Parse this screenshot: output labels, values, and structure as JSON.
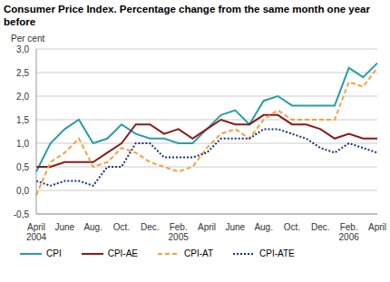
{
  "chart_data": {
    "type": "line",
    "title": "Consumer Price Index. Percentage change from the same month one year before",
    "y_label": "Per cent",
    "categories": [
      "April 2004",
      null,
      "June",
      null,
      "Aug.",
      null,
      "Oct.",
      null,
      "Dec.",
      null,
      "Feb. 2005",
      null,
      "April",
      null,
      "June",
      null,
      "Aug.",
      null,
      "Oct.",
      null,
      "Dec.",
      null,
      "Feb. 2006",
      null,
      "April"
    ],
    "series": [
      {
        "name": "CPI",
        "color": "#2a9ea3",
        "line_style": "solid",
        "values": [
          0.4,
          1.0,
          1.3,
          1.5,
          1.0,
          1.1,
          1.4,
          1.2,
          1.1,
          1.1,
          1.0,
          1.0,
          1.3,
          1.6,
          1.7,
          1.4,
          1.9,
          2.0,
          1.8,
          1.8,
          1.8,
          1.8,
          2.6,
          2.4,
          2.7
        ]
      },
      {
        "name": "CPI-AE",
        "color": "#8b1a1a",
        "line_style": "solid",
        "values": [
          0.5,
          0.5,
          0.6,
          0.6,
          0.6,
          0.8,
          1.0,
          1.4,
          1.4,
          1.2,
          1.3,
          1.1,
          1.3,
          1.5,
          1.4,
          1.4,
          1.6,
          1.6,
          1.4,
          1.4,
          1.3,
          1.1,
          1.2,
          1.1,
          1.1
        ]
      },
      {
        "name": "CPI-AT",
        "color": "#f5a040",
        "line_style": "dashed",
        "values": [
          -0.1,
          0.6,
          0.8,
          1.1,
          0.5,
          0.6,
          0.9,
          0.8,
          0.6,
          0.5,
          0.4,
          0.5,
          0.9,
          1.2,
          1.3,
          1.1,
          1.5,
          1.7,
          1.5,
          1.5,
          1.5,
          1.5,
          2.3,
          2.2,
          2.6
        ]
      },
      {
        "name": "CPI-ATE",
        "color": "#1a2f80",
        "line_style": "dotted",
        "values": [
          0.2,
          0.1,
          0.2,
          0.2,
          0.1,
          0.5,
          0.5,
          1.0,
          1.0,
          0.7,
          0.7,
          0.7,
          0.8,
          1.1,
          1.1,
          1.1,
          1.3,
          1.3,
          1.2,
          1.1,
          0.9,
          0.8,
          1.0,
          0.9,
          0.8
        ]
      }
    ],
    "ylim": [
      -0.5,
      3.0
    ],
    "yticks": [
      {
        "value": -0.5,
        "label": "-0,5"
      },
      {
        "value": 0,
        "label": "0,0"
      },
      {
        "value": 0.5,
        "label": "0,5"
      },
      {
        "value": 1.0,
        "label": "1,0"
      },
      {
        "value": 1.5,
        "label": "1,5"
      },
      {
        "value": 2.0,
        "label": "2,0"
      },
      {
        "value": 2.5,
        "label": "2,5"
      },
      {
        "value": 3.0,
        "label": "3,0"
      }
    ],
    "grid": true,
    "legend": "bottom"
  }
}
